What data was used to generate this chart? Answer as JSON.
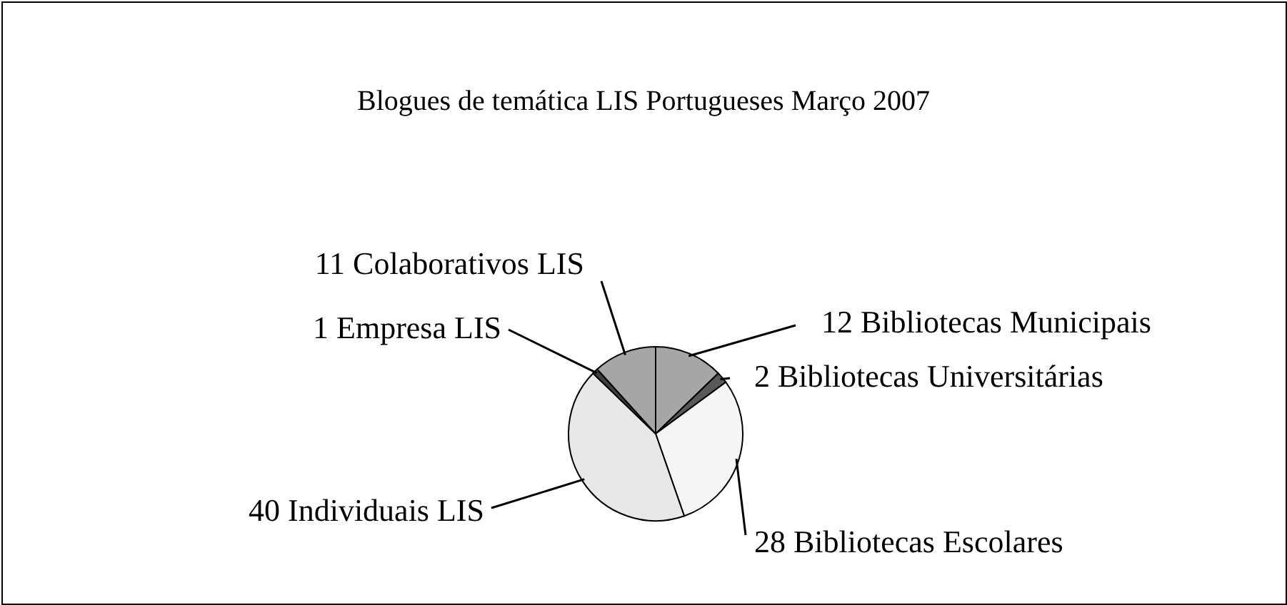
{
  "chart_data": {
    "type": "pie",
    "title": "Blogues de temática LIS Portugueses Março 2007",
    "categories": [
      "12 Bibliotecas Municipais",
      "2 Bibliotecas Universitárias",
      "28 Bibliotecas Escolares",
      "40 Individuais LIS",
      "1 Empresa LIS",
      "11 Colaborativos LIS"
    ],
    "values": [
      12,
      2,
      28,
      40,
      1,
      11
    ],
    "colors": [
      "#a6a6a6",
      "#595959",
      "#f5f5f5",
      "#e8e8e8",
      "#404040",
      "#a6a6a6"
    ]
  }
}
